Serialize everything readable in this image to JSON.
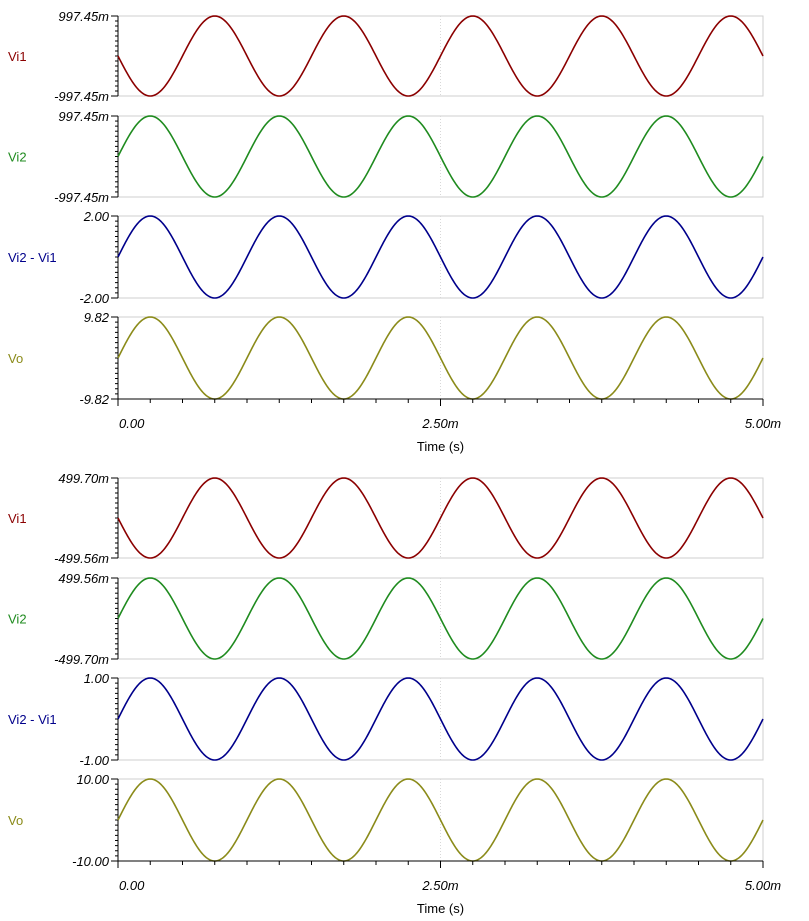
{
  "chart_data": [
    {
      "type": "line",
      "x_unit_note": "x values in milliseconds (tick labels use m suffix)",
      "xlabel": "Time (s)",
      "x_tick_labels": [
        "0.00",
        "2.50m",
        "5.00m"
      ],
      "xlim": [
        0,
        5
      ],
      "signal_frequency_hz": 1000,
      "panels": [
        {
          "name": "Vi1",
          "color": "#8b0000",
          "top_label": "997.45m",
          "bottom_label": "-997.45m",
          "ylim": [
            -997.45,
            997.45
          ],
          "amplitude": 997.45,
          "unit": "mV",
          "phase": "inverted"
        },
        {
          "name": "Vi2",
          "color": "#1f8b1f",
          "top_label": "997.45m",
          "bottom_label": "-997.45m",
          "ylim": [
            -997.45,
            997.45
          ],
          "amplitude": 997.45,
          "unit": "mV",
          "phase": "normal"
        },
        {
          "name": "Vi2 - Vi1",
          "color": "#00008b",
          "top_label": "2.00",
          "bottom_label": "-2.00",
          "ylim": [
            -2.0,
            2.0
          ],
          "amplitude": 2.0,
          "unit": "V",
          "phase": "normal"
        },
        {
          "name": "Vo",
          "color": "#8b8b1a",
          "top_label": "9.82",
          "bottom_label": "-9.82",
          "ylim": [
            -9.82,
            9.82
          ],
          "amplitude": 9.82,
          "unit": "V",
          "phase": "normal"
        }
      ]
    },
    {
      "type": "line",
      "xlabel": "Time (s)",
      "x_tick_labels": [
        "0.00",
        "2.50m",
        "5.00m"
      ],
      "xlim": [
        0,
        5
      ],
      "signal_frequency_hz": 1000,
      "panels": [
        {
          "name": "Vi1",
          "color": "#8b0000",
          "top_label": "499.70m",
          "bottom_label": "-499.56m",
          "ylim": [
            -499.56,
            499.7
          ],
          "amplitude": 499.63,
          "unit": "mV",
          "phase": "inverted"
        },
        {
          "name": "Vi2",
          "color": "#1f8b1f",
          "top_label": "499.56m",
          "bottom_label": "-499.70m",
          "ylim": [
            -499.7,
            499.56
          ],
          "amplitude": 499.63,
          "unit": "mV",
          "phase": "normal"
        },
        {
          "name": "Vi2 - Vi1",
          "color": "#00008b",
          "top_label": "1.00",
          "bottom_label": "-1.00",
          "ylim": [
            -1.0,
            1.0
          ],
          "amplitude": 1.0,
          "unit": "V",
          "phase": "normal"
        },
        {
          "name": "Vo",
          "color": "#8b8b1a",
          "top_label": "10.00",
          "bottom_label": "-10.00",
          "ylim": [
            -10.0,
            10.0
          ],
          "amplitude": 10.0,
          "unit": "V",
          "phase": "normal"
        }
      ]
    }
  ]
}
